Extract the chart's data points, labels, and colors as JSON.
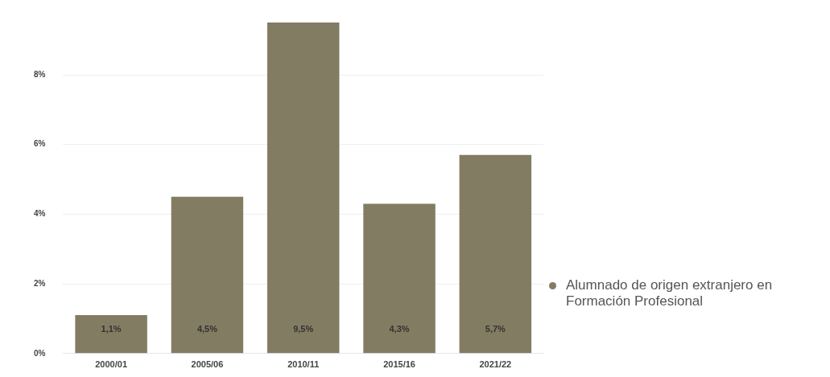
{
  "chart_data": {
    "type": "bar",
    "categories": [
      "2000/01",
      "2005/06",
      "2010/11",
      "2015/16",
      "2021/22"
    ],
    "series": [
      {
        "name": "Alumnado de origen extranjero en Formación Profesional",
        "color": "#827c62",
        "values": [
          1.1,
          4.5,
          9.5,
          4.3,
          5.7
        ],
        "value_labels": [
          "1,1%",
          "4,5%",
          "9,5%",
          "4,3%",
          "5,7%"
        ]
      }
    ],
    "ylim": [
      0,
      9.5
    ],
    "yticks": [
      {
        "value": 0,
        "label": "0%"
      },
      {
        "value": 2,
        "label": "2%"
      },
      {
        "value": 4,
        "label": "4%"
      },
      {
        "value": 6,
        "label": "6%"
      },
      {
        "value": 8,
        "label": "8%"
      }
    ],
    "grid": "y",
    "legend": "right"
  }
}
